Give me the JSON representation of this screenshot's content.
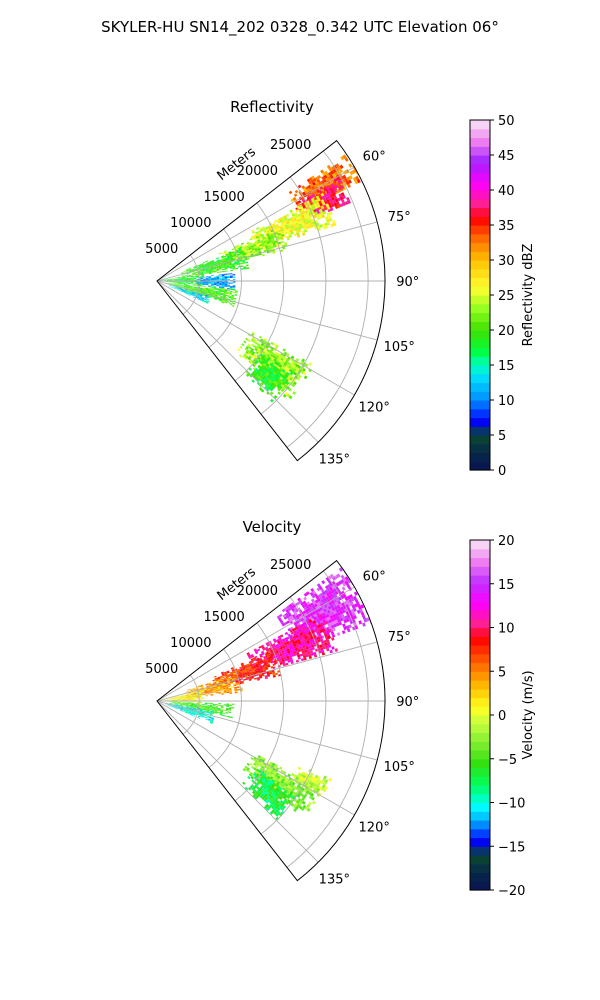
{
  "title": "SKYLER-HU  SN14_202  0328_0.342 UTC Elevation 06°",
  "chart_data": [
    {
      "type": "heatmap",
      "projection": "polar-sector",
      "title": "Reflectivity",
      "radial_label": "Meters",
      "r_ticks": [
        5000,
        10000,
        15000,
        20000,
        25000
      ],
      "r_tick_labels": [
        "5000",
        "10000",
        "15000",
        "20000",
        "25000"
      ],
      "rlim": [
        0,
        27000
      ],
      "angle_ticks_deg": [
        60,
        75,
        90,
        105,
        120,
        135
      ],
      "angle_tick_labels": [
        "60°",
        "75°",
        "90°",
        "105°",
        "120°",
        "135°"
      ],
      "azimuth_range_deg": [
        52,
        142
      ],
      "grid": true,
      "colorbar": {
        "label": "Reflectivity dBZ",
        "range": [
          0,
          50
        ],
        "ticks": [
          0,
          5,
          10,
          15,
          20,
          25,
          30,
          35,
          40,
          45,
          50
        ],
        "tick_labels": [
          "0",
          "5",
          "10",
          "15",
          "20",
          "25",
          "30",
          "35",
          "40",
          "45",
          "50"
        ]
      },
      "echo_regions": [
        {
          "az": [
            56,
            64
          ],
          "r": [
            18500,
            27000
          ],
          "value": 33
        },
        {
          "az": [
            60,
            68
          ],
          "r": [
            19000,
            24500
          ],
          "value": 37
        },
        {
          "az": [
            62,
            72
          ],
          "r": [
            12000,
            22000
          ],
          "value": 26
        },
        {
          "az": [
            66,
            76
          ],
          "r": [
            8000,
            16000
          ],
          "value": 23
        },
        {
          "az": [
            68,
            82
          ],
          "r": [
            3000,
            11000
          ],
          "value": 19
        },
        {
          "az": [
            80,
            96
          ],
          "r": [
            500,
            5500
          ],
          "value": 18
        },
        {
          "az": [
            84,
            96
          ],
          "r": [
            4500,
            9000
          ],
          "value": 11
        },
        {
          "az": [
            96,
            108
          ],
          "r": [
            1000,
            9500
          ],
          "value": 20
        },
        {
          "az": [
            106,
            114
          ],
          "r": [
            1500,
            6500
          ],
          "value": 13
        },
        {
          "az": [
            118,
            132
          ],
          "r": [
            12500,
            21000
          ],
          "value": 23
        },
        {
          "az": [
            124,
            136
          ],
          "r": [
            15000,
            19500
          ],
          "value": 19
        }
      ]
    },
    {
      "type": "heatmap",
      "projection": "polar-sector",
      "title": "Velocity",
      "radial_label": "Meters",
      "r_ticks": [
        5000,
        10000,
        15000,
        20000,
        25000
      ],
      "r_tick_labels": [
        "5000",
        "10000",
        "15000",
        "20000",
        "25000"
      ],
      "rlim": [
        0,
        27000
      ],
      "angle_ticks_deg": [
        60,
        75,
        90,
        105,
        120,
        135
      ],
      "angle_tick_labels": [
        "60°",
        "75°",
        "90°",
        "105°",
        "120°",
        "135°"
      ],
      "azimuth_range_deg": [
        52,
        142
      ],
      "grid": true,
      "colorbar": {
        "label": "Velocity (m/s)",
        "range": [
          -20,
          20
        ],
        "ticks": [
          -20,
          -15,
          -10,
          -5,
          0,
          5,
          10,
          15,
          20
        ],
        "tick_labels": [
          "−20",
          "−15",
          "−10",
          "−5",
          "0",
          "5",
          "10",
          "15",
          "20"
        ]
      },
      "echo_regions": [
        {
          "az": [
            54,
            70
          ],
          "r": [
            17000,
            27000
          ],
          "value": 15
        },
        {
          "az": [
            62,
            74
          ],
          "r": [
            12000,
            22000
          ],
          "value": 11
        },
        {
          "az": [
            66,
            78
          ],
          "r": [
            7000,
            15000
          ],
          "value": 8
        },
        {
          "az": [
            70,
            84
          ],
          "r": [
            3500,
            10000
          ],
          "value": 4
        },
        {
          "az": [
            76,
            92
          ],
          "r": [
            500,
            5500
          ],
          "value": 1
        },
        {
          "az": [
            92,
            102
          ],
          "r": [
            1500,
            9000
          ],
          "value": -5
        },
        {
          "az": [
            100,
            112
          ],
          "r": [
            1000,
            7000
          ],
          "value": -10
        },
        {
          "az": [
            118,
            128
          ],
          "r": [
            13000,
            22000
          ],
          "value": -3
        },
        {
          "az": [
            124,
            134
          ],
          "r": [
            14000,
            20000
          ],
          "value": -7
        },
        {
          "az": [
            114,
            120
          ],
          "r": [
            18500,
            22500
          ],
          "value": -1
        }
      ]
    }
  ]
}
